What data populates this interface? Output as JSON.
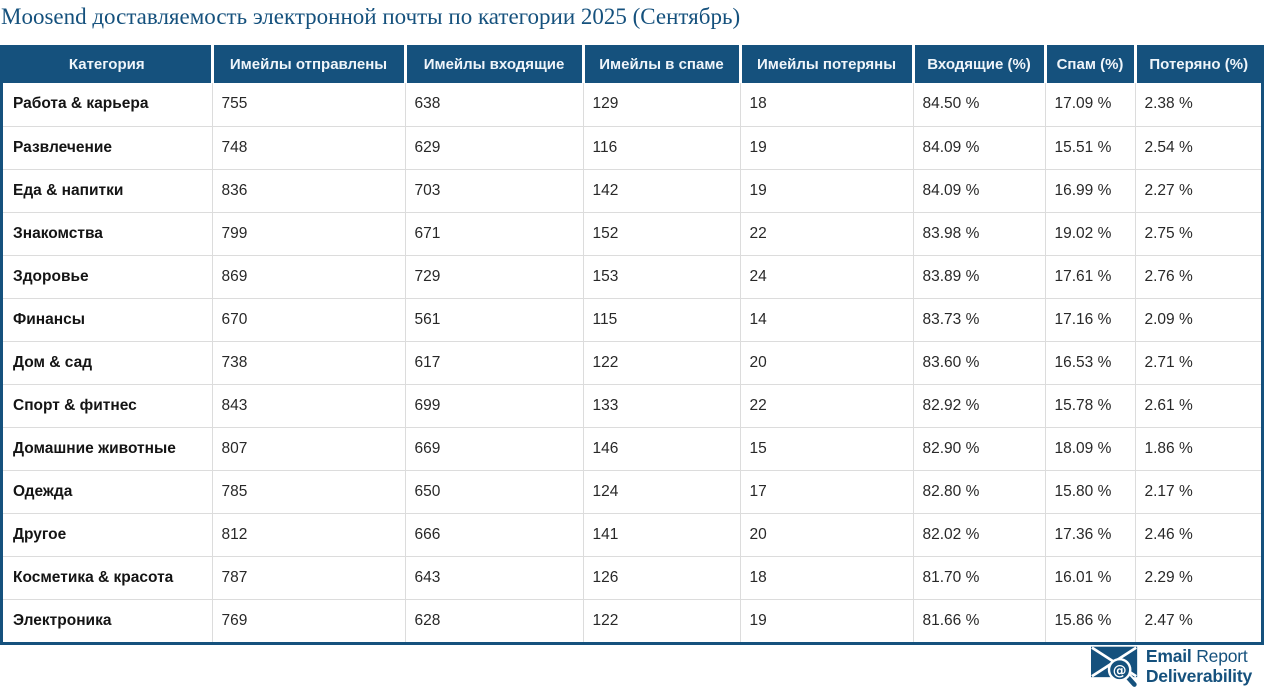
{
  "title": "Moosend доставляемость электронной почты по категории 2025 (Сентябрь)",
  "chart_data": {
    "type": "table",
    "title": "Moosend доставляемость электронной почты по категории 2025 (Сентябрь)",
    "columns": [
      "Категория",
      "Имейлы отправлены",
      "Имейлы входящие",
      "Имейлы в спаме",
      "Имейлы потеряны",
      "Входящие (%)",
      "Спам (%)",
      "Потеряно (%)"
    ],
    "rows": [
      [
        "Работа & карьера",
        "755",
        "638",
        "129",
        "18",
        "84.50 %",
        "17.09 %",
        "2.38 %"
      ],
      [
        "Развлечение",
        "748",
        "629",
        "116",
        "19",
        "84.09 %",
        "15.51 %",
        "2.54 %"
      ],
      [
        "Еда & напитки",
        "836",
        "703",
        "142",
        "19",
        "84.09 %",
        "16.99 %",
        "2.27 %"
      ],
      [
        "Знакомства",
        "799",
        "671",
        "152",
        "22",
        "83.98 %",
        "19.02 %",
        "2.75 %"
      ],
      [
        "Здоровье",
        "869",
        "729",
        "153",
        "24",
        "83.89 %",
        "17.61 %",
        "2.76 %"
      ],
      [
        "Финансы",
        "670",
        "561",
        "115",
        "14",
        "83.73 %",
        "17.16 %",
        "2.09 %"
      ],
      [
        "Дом & сад",
        "738",
        "617",
        "122",
        "20",
        "83.60 %",
        "16.53 %",
        "2.71 %"
      ],
      [
        "Спорт & фитнес",
        "843",
        "699",
        "133",
        "22",
        "82.92 %",
        "15.78 %",
        "2.61 %"
      ],
      [
        "Домашние животные",
        "807",
        "669",
        "146",
        "15",
        "82.90 %",
        "18.09 %",
        "1.86 %"
      ],
      [
        "Одежда",
        "785",
        "650",
        "124",
        "17",
        "82.80 %",
        "15.80 %",
        "2.17 %"
      ],
      [
        "Другое",
        "812",
        "666",
        "141",
        "20",
        "82.02 %",
        "17.36 %",
        "2.46 %"
      ],
      [
        "Косметика & красота",
        "787",
        "643",
        "126",
        "18",
        "81.70 %",
        "16.01 %",
        "2.29 %"
      ],
      [
        "Электроника",
        "769",
        "628",
        "122",
        "19",
        "81.66 %",
        "15.86 %",
        "2.47 %"
      ]
    ]
  },
  "footer": {
    "brand_line1_bold": "Email",
    "brand_line1_regular": "Report",
    "brand_line2": "Deliverability",
    "logo_at_symbol": "@"
  },
  "colors": {
    "accent": "#15517D",
    "header_bg": "#15517D",
    "header_text": "#EFF5FA",
    "row_border": "#DCDCDC",
    "cell_text": "#282828"
  }
}
